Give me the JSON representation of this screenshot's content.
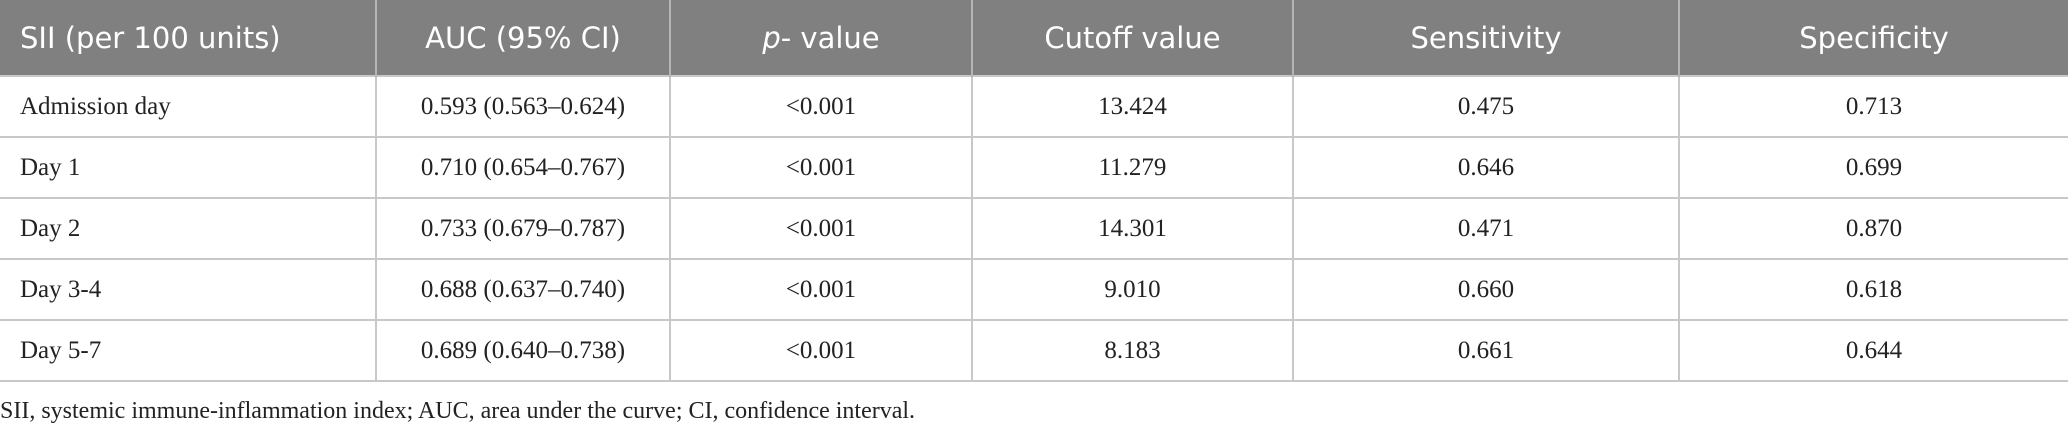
{
  "table": {
    "headers": [
      "SII (per 100 units)",
      "AUC (95% CI)",
      {
        "italic": "p",
        "rest": "- value"
      },
      "Cutoff value",
      "Sensitivity",
      "Specificity"
    ],
    "rows": [
      [
        "Admission day",
        "0.593 (0.563–0.624)",
        "<0.001",
        "13.424",
        "0.475",
        "0.713"
      ],
      [
        "Day 1",
        "0.710 (0.654–0.767)",
        "<0.001",
        "11.279",
        "0.646",
        "0.699"
      ],
      [
        "Day 2",
        "0.733 (0.679–0.787)",
        "<0.001",
        "14.301",
        "0.471",
        "0.870"
      ],
      [
        "Day 3-4",
        "0.688 (0.637–0.740)",
        "<0.001",
        "9.010",
        "0.660",
        "0.618"
      ],
      [
        "Day 5-7",
        "0.689 (0.640–0.738)",
        "<0.001",
        "8.183",
        "0.661",
        "0.644"
      ]
    ]
  },
  "footnote": "SII, systemic immune-inflammation index; AUC, area under the curve; CI, confidence interval."
}
